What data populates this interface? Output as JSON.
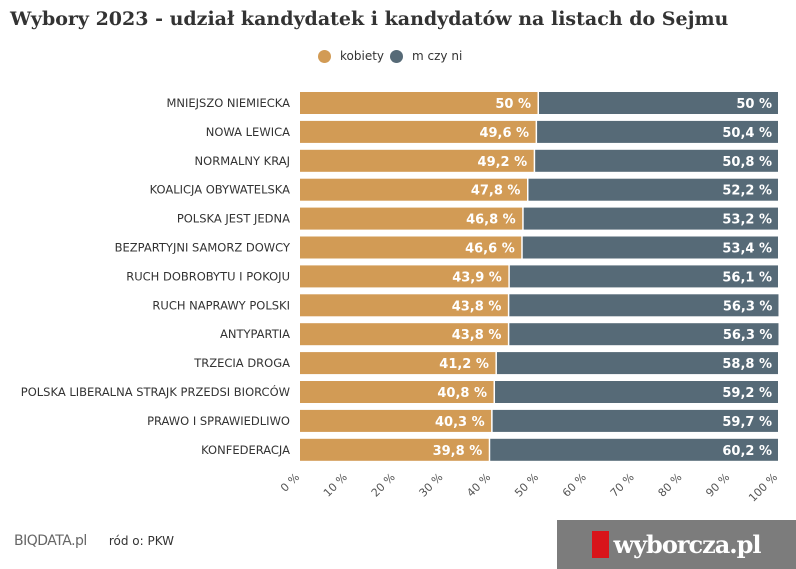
{
  "title": "Wybory 2023 - udział kandydatek i kandydatów na listach do Sejmu",
  "chart_data": {
    "type": "bar",
    "orientation": "horizontal",
    "stacked": true,
    "title": "Wybory 2023 - udział kandydatek i kandydatów na listach do Sejmu",
    "categories": [
      "MNIEJSZO NIEMIECKA",
      "NOWA LEWICA",
      "NORMALNY KRAJ",
      "KOALICJA OBYWATELSKA",
      "POLSKA JEST JEDNA",
      "BEZPARTYJNI SAMORZ DOWCY",
      "RUCH DOBROBYTU I POKOJU",
      "RUCH NAPRAWY POLSKI",
      "ANTYPARTIA",
      "TRZECIA DROGA",
      "POLSKA LIBERALNA STRAJK PRZEDSI BIORCÓW",
      "PRAWO I SPRAWIEDLIWO",
      "KONFEDERACJA"
    ],
    "series": [
      {
        "name": "kobiety",
        "color": "#d29b55",
        "values": [
          50,
          49.6,
          49.2,
          47.8,
          46.8,
          46.6,
          43.9,
          43.8,
          43.8,
          41.2,
          40.8,
          40.3,
          39.8
        ]
      },
      {
        "name": "m czy ni",
        "color": "#566a77",
        "values": [
          50,
          50.4,
          50.8,
          52.2,
          53.2,
          53.4,
          56.1,
          56.3,
          56.3,
          58.8,
          59.2,
          59.7,
          60.2
        ]
      }
    ],
    "xlim": [
      0,
      100
    ],
    "xticks": [
      "0 %",
      "10 %",
      "20 %",
      "30 %",
      "40 %",
      "50 %",
      "60 %",
      "70 %",
      "80 %",
      "90 %",
      "100 %"
    ],
    "legend": "top-center"
  },
  "footer": {
    "logo": "BIQDATA.pl",
    "source": "ród o: PKW"
  },
  "watermark": "wyborcza.pl"
}
